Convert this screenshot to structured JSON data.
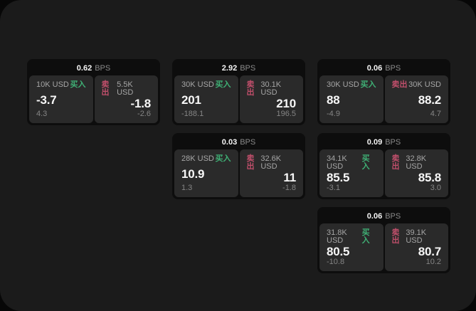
{
  "labels": {
    "bps_unit": "BPS",
    "buy": "买入",
    "sell": "卖出"
  },
  "colors": {
    "buy_green": "#3fb075",
    "sell_red": "#c04f6b",
    "window_bg": "#1b1b1b",
    "card_bg": "#0d0d0d",
    "panel_bg": "#2a2a2a"
  },
  "cards": [
    {
      "bps": "0.62",
      "buy": {
        "size": "10K USD",
        "value": "-3.7",
        "delta": "4.3"
      },
      "sell": {
        "size": "5.5K USD",
        "value": "-1.8",
        "delta": "-2.6"
      }
    },
    {
      "bps": "2.92",
      "buy": {
        "size": "30K USD",
        "value": "201",
        "delta": "-188.1"
      },
      "sell": {
        "size": "30.1K USD",
        "value": "210",
        "delta": "196.5"
      }
    },
    {
      "bps": "0.06",
      "buy": {
        "size": "30K USD",
        "value": "88",
        "delta": "-4.9"
      },
      "sell": {
        "size": "30K USD",
        "value": "88.2",
        "delta": "4.7"
      }
    },
    {
      "bps": "0.03",
      "buy": {
        "size": "28K USD",
        "value": "10.9",
        "delta": "1.3"
      },
      "sell": {
        "size": "32.6K USD",
        "value": "11",
        "delta": "-1.8"
      }
    },
    {
      "bps": "0.09",
      "buy": {
        "size": "34.1K USD",
        "value": "85.5",
        "delta": "-3.1"
      },
      "sell": {
        "size": "32.8K USD",
        "value": "85.8",
        "delta": "3.0"
      }
    },
    {
      "bps": "0.06",
      "buy": {
        "size": "31.8K USD",
        "value": "80.5",
        "delta": "-10.8"
      },
      "sell": {
        "size": "39.1K USD",
        "value": "80.7",
        "delta": "10.2"
      }
    }
  ]
}
